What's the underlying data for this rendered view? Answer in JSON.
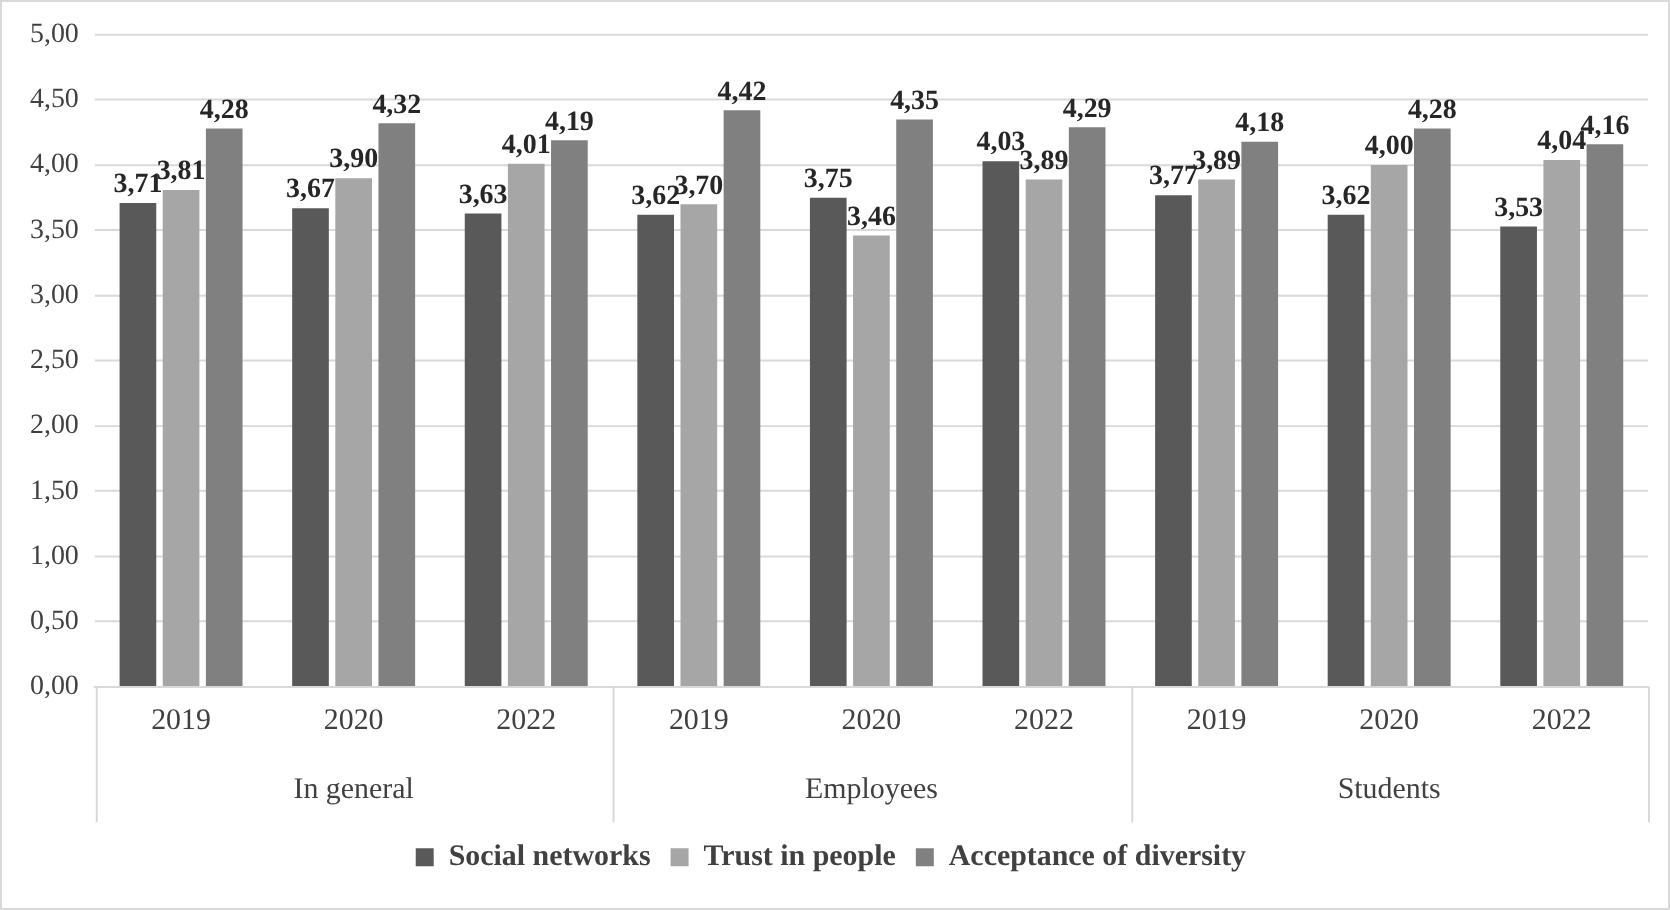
{
  "chart_data": {
    "type": "bar",
    "categories": [
      "2019",
      "2020",
      "2022",
      "2019",
      "2020",
      "2022",
      "2019",
      "2020",
      "2022"
    ],
    "annotations": [
      "In general",
      "Employees",
      "Students"
    ],
    "series": [
      {
        "name": "Social networks",
        "color": "#595959",
        "values": [
          3.71,
          3.67,
          3.63,
          3.62,
          3.75,
          4.03,
          3.77,
          3.62,
          3.53
        ],
        "value_labels": [
          "3,71",
          "3,67",
          "3,63",
          "3,62",
          "3,75",
          "4,03",
          "3,77",
          "3,62",
          "3,53"
        ]
      },
      {
        "name": "Trust in people",
        "color": "#a6a6a6",
        "values": [
          3.81,
          3.9,
          4.01,
          3.7,
          3.46,
          3.89,
          3.89,
          4.0,
          4.04
        ],
        "value_labels": [
          "3,81",
          "3,90",
          "4,01",
          "3,70",
          "3,46",
          "3,89",
          "3,89",
          "4,00",
          "4,04"
        ]
      },
      {
        "name": "Acceptance of diversity",
        "color": "#808080",
        "values": [
          4.28,
          4.32,
          4.19,
          4.42,
          4.35,
          4.29,
          4.18,
          4.28,
          4.16
        ],
        "value_labels": [
          "4,28",
          "4,32",
          "4,19",
          "4,42",
          "4,35",
          "4,29",
          "4,18",
          "4,28",
          "4,16"
        ]
      }
    ],
    "ylim": [
      0,
      5
    ],
    "yticks": [
      {
        "value": 0,
        "label": "0,00"
      },
      {
        "value": 0.5,
        "label": "0,50"
      },
      {
        "value": 1,
        "label": "1,00"
      },
      {
        "value": 1.5,
        "label": "1,50"
      },
      {
        "value": 2,
        "label": "2,00"
      },
      {
        "value": 2.5,
        "label": "2,50"
      },
      {
        "value": 3,
        "label": "3,00"
      },
      {
        "value": 3.5,
        "label": "3,50"
      },
      {
        "value": 4,
        "label": "4,00"
      },
      {
        "value": 4.5,
        "label": "4,50"
      },
      {
        "value": 5,
        "label": "5,00"
      }
    ],
    "grid": "y",
    "legend": "bottom"
  }
}
